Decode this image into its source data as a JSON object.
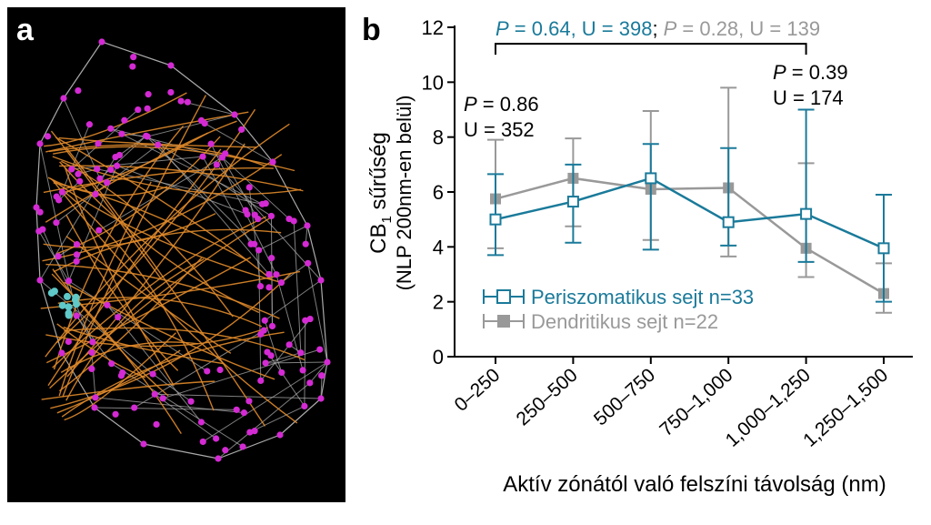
{
  "panel_a": {
    "letter": "a",
    "colors": {
      "background": "#000000",
      "mesh": "#aaaaaa",
      "fibers": "#e08a2a",
      "nodes": "#d42ad4",
      "cluster": "#5fc8c8"
    }
  },
  "panel_b": {
    "letter": "b",
    "stats_top": {
      "blue_text_p": "P",
      "blue_text_rest": " = 0.64, U = 398",
      "separator": ";",
      "gray_text_p": "P",
      "gray_text_rest": " = 0.28, U = 139"
    },
    "stat_left": {
      "p_label": "P",
      "p_rest": " = 0.86",
      "u": "U = 352"
    },
    "stat_right": {
      "p_label": "P",
      "p_rest": " = 0.39",
      "u": "U = 174"
    }
  },
  "chart_data": {
    "type": "line",
    "ylabel_main": "CB",
    "ylabel_sub": "1",
    "ylabel_rest": " sűrűség",
    "ylabel_line2": "(NLP 200nm-en belül)",
    "xlabel": "Aktív zónától való felszíni távolság (nm)",
    "categories": [
      "0–250",
      "250–500",
      "500–750",
      "750–1,000",
      "1,000–1,250",
      "1,250–1,500"
    ],
    "ylim": [
      0,
      12
    ],
    "yticks": [
      0,
      2,
      4,
      6,
      8,
      10,
      12
    ],
    "grid": false,
    "legend_position": "bottom-left",
    "series": [
      {
        "name": "Periszomatikus sejt n=33",
        "color": "#1a7a9a",
        "marker": "open-square",
        "values": [
          5.0,
          5.65,
          6.5,
          4.9,
          5.2,
          3.95
        ],
        "err_low": [
          3.7,
          4.15,
          3.9,
          4.05,
          3.45,
          2.0
        ],
        "err_high": [
          6.65,
          7.0,
          7.75,
          7.6,
          9.0,
          5.9
        ]
      },
      {
        "name": "Dendritikus sejt n=22",
        "color": "#999999",
        "marker": "filled-square",
        "values": [
          5.75,
          6.5,
          6.1,
          6.15,
          3.95,
          2.3
        ],
        "err_low": [
          3.95,
          4.75,
          4.25,
          3.65,
          2.9,
          1.6
        ],
        "err_high": [
          7.9,
          7.95,
          8.95,
          9.8,
          7.05,
          3.4
        ]
      }
    ],
    "comparisons": [
      {
        "from_index": 0,
        "to_index": 4,
        "level": 11.4
      }
    ]
  }
}
